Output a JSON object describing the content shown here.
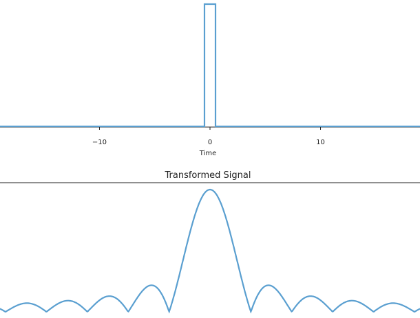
{
  "chart_data": [
    {
      "type": "line",
      "title": "",
      "xlabel": "Time",
      "ylabel": "",
      "xlim": [
        -19,
        19
      ],
      "ylim": [
        0,
        1.1
      ],
      "x_tick_values": [
        -10,
        0,
        10
      ],
      "x_tick_labels": [
        "−10",
        "0",
        "10"
      ],
      "grid": false,
      "line_color": "#5a9fd0",
      "series": [
        {
          "x": [
            -19,
            -0.5,
            -0.5,
            0.5,
            0.5,
            19
          ],
          "values": [
            0,
            0,
            1,
            1,
            0,
            0
          ]
        }
      ]
    },
    {
      "type": "line",
      "title": "Transformed Signal",
      "xlabel": "",
      "ylabel": "",
      "xlim": [
        -19,
        19
      ],
      "ylim": [
        0,
        1.0
      ],
      "grid": false,
      "line_color": "#5a9fd0",
      "series": [
        {
          "function": "abs_sinc",
          "x_range": [
            -19,
            19
          ],
          "peak": 1.0
        }
      ]
    }
  ]
}
